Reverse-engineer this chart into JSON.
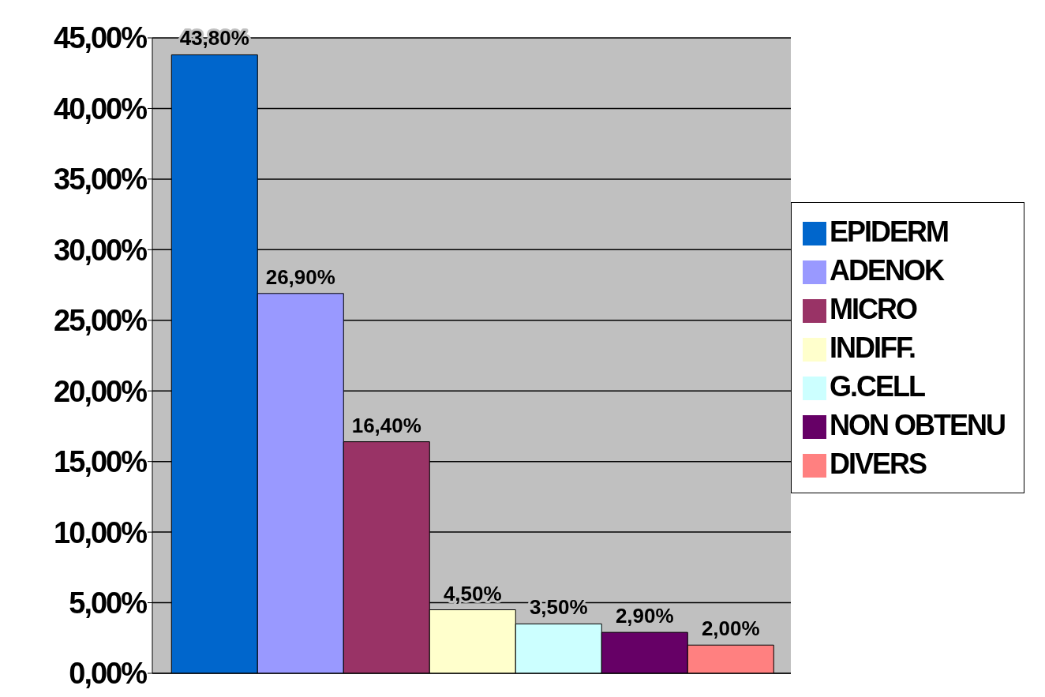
{
  "chart_data": {
    "type": "bar",
    "categories": [
      null
    ],
    "series": [
      {
        "name": "EPIDERM",
        "color": "#0066cc",
        "values": [
          43.8
        ],
        "value_labels": [
          "43,80%"
        ]
      },
      {
        "name": "ADENOK",
        "color": "#9999ff",
        "values": [
          26.9
        ],
        "value_labels": [
          "26,90%"
        ]
      },
      {
        "name": "MICRO",
        "color": "#993366",
        "values": [
          16.4
        ],
        "value_labels": [
          "16,40%"
        ]
      },
      {
        "name": "INDIFF.",
        "color": "#ffffcc",
        "values": [
          4.5
        ],
        "value_labels": [
          "4,50%"
        ]
      },
      {
        "name": "G.CELL",
        "color": "#ccffff",
        "values": [
          3.5
        ],
        "value_labels": [
          "3,50%"
        ]
      },
      {
        "name": "NON OBTENU",
        "color": "#660066",
        "values": [
          2.9
        ],
        "value_labels": [
          "2,90%"
        ]
      },
      {
        "name": "DIVERS",
        "color": "#ff8080",
        "values": [
          2.0
        ],
        "value_labels": [
          "2,00%"
        ]
      }
    ],
    "ylim": [
      0,
      45
    ],
    "yticks": [
      {
        "value": 0,
        "label": "0,00%"
      },
      {
        "value": 5,
        "label": "5,00%"
      },
      {
        "value": 10,
        "label": "10,00%"
      },
      {
        "value": 15,
        "label": "15,00%"
      },
      {
        "value": 20,
        "label": "20,00%"
      },
      {
        "value": 25,
        "label": "25,00%"
      },
      {
        "value": 30,
        "label": "30,00%"
      },
      {
        "value": 35,
        "label": "35,00%"
      },
      {
        "value": 40,
        "label": "40,00%"
      },
      {
        "value": 45,
        "label": "45,00%"
      }
    ],
    "grid": "y",
    "legend": "right"
  }
}
